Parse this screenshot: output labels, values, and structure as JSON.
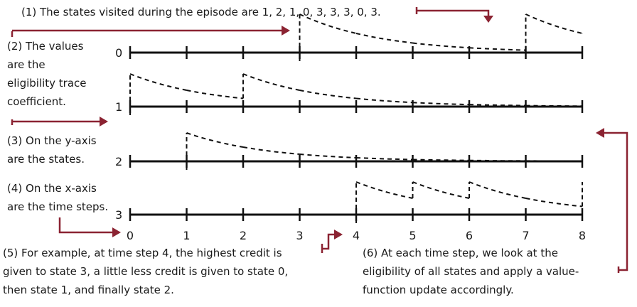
{
  "annotations": {
    "n1": "(1) The states visited during the episode are 1, 2, 1, 0, 3, 3, 3, 0, 3.",
    "n2": [
      "(2) The values",
      "are the",
      "eligibility trace",
      "coefficient."
    ],
    "n3": [
      "(3) On the y-axis",
      "are the states."
    ],
    "n4": [
      "(4) On the x-axis",
      "are the time steps."
    ],
    "n5": [
      "(5) For example, at time step 4, the highest credit is",
      "given to state 3, a little less credit is given to state 0,",
      "then state 1, and finally state 2."
    ],
    "n6": [
      "(6) At each time step, we look at the",
      "eligibility of all states and apply a value-",
      "function update accordingly."
    ]
  },
  "chart_data": {
    "type": "line",
    "visits": [
      1,
      2,
      1,
      0,
      3,
      3,
      3,
      0,
      3
    ],
    "x_ticks": [
      "0",
      "1",
      "2",
      "3",
      "4",
      "5",
      "6",
      "7",
      "8"
    ],
    "states": [
      "0",
      "1",
      "2",
      "3"
    ],
    "decay_per_step": 0.5,
    "colors": {
      "callout": "#8b2332",
      "ink": "#111111"
    }
  }
}
